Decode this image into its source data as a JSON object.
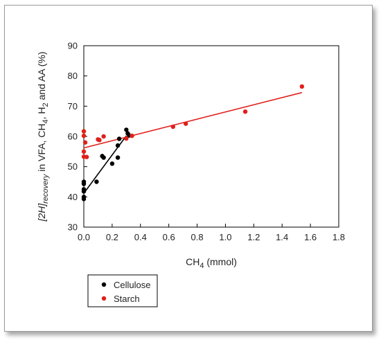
{
  "chart_data": {
    "type": "scatter",
    "xlabel": {
      "main": "CH",
      "sub": "4",
      "rest": " (mmol)"
    },
    "ylabel": {
      "bracket": "[2H]",
      "sub_recovery": "recovery",
      "part1": " in VFA, CH",
      "sub4": "4",
      "part2": ", H",
      "sub2": "2",
      "part3": " and AA (%)"
    },
    "xlim": [
      0.0,
      1.8
    ],
    "ylim": [
      30,
      90
    ],
    "xticks": [
      "0.0",
      "0.2",
      "0.4",
      "0.6",
      "0.8",
      "1.0",
      "1.2",
      "1.4",
      "1.6",
      "1.8"
    ],
    "xtick_values": [
      0.0,
      0.2,
      0.4,
      0.6,
      0.8,
      1.0,
      1.2,
      1.4,
      1.6,
      1.8
    ],
    "yticks": [
      "30",
      "40",
      "50",
      "60",
      "70",
      "80",
      "90"
    ],
    "ytick_values": [
      30,
      40,
      50,
      60,
      70,
      80,
      90
    ],
    "grid": false,
    "legend_placement": "bottom-left, below plot",
    "series": [
      {
        "name": "Cellulose",
        "color": "#000000",
        "points": [
          {
            "x": 0.0,
            "y": 39.3
          },
          {
            "x": 0.0,
            "y": 40.0
          },
          {
            "x": 0.0,
            "y": 41.8
          },
          {
            "x": 0.0,
            "y": 42.5
          },
          {
            "x": 0.0,
            "y": 44.3
          },
          {
            "x": 0.0,
            "y": 45.0
          },
          {
            "x": 0.09,
            "y": 45.0
          },
          {
            "x": 0.13,
            "y": 53.5
          },
          {
            "x": 0.14,
            "y": 53.0
          },
          {
            "x": 0.2,
            "y": 51.0
          },
          {
            "x": 0.24,
            "y": 53.0
          },
          {
            "x": 0.24,
            "y": 57.0
          },
          {
            "x": 0.25,
            "y": 59.2
          },
          {
            "x": 0.3,
            "y": 62.2
          },
          {
            "x": 0.31,
            "y": 61.0
          },
          {
            "x": 0.32,
            "y": 60.3
          }
        ],
        "trend": {
          "x": [
            0.0,
            0.3
          ],
          "y": [
            41.2,
            60.2
          ]
        }
      },
      {
        "name": "Starch",
        "color": "#e0201b",
        "points": [
          {
            "x": 0.0,
            "y": 53.3
          },
          {
            "x": 0.0,
            "y": 55.0
          },
          {
            "x": 0.0,
            "y": 60.2
          },
          {
            "x": 0.0,
            "y": 61.7
          },
          {
            "x": 0.01,
            "y": 58.0
          },
          {
            "x": 0.02,
            "y": 53.2
          },
          {
            "x": 0.1,
            "y": 59.0
          },
          {
            "x": 0.11,
            "y": 58.8
          },
          {
            "x": 0.14,
            "y": 60.0
          },
          {
            "x": 0.3,
            "y": 59.3
          },
          {
            "x": 0.34,
            "y": 60.2
          },
          {
            "x": 0.63,
            "y": 63.2
          },
          {
            "x": 0.72,
            "y": 64.2
          },
          {
            "x": 1.14,
            "y": 68.2
          },
          {
            "x": 1.54,
            "y": 76.5
          }
        ],
        "trend": {
          "x": [
            0.0,
            1.54
          ],
          "y": [
            56.2,
            74.5
          ]
        }
      }
    ]
  }
}
